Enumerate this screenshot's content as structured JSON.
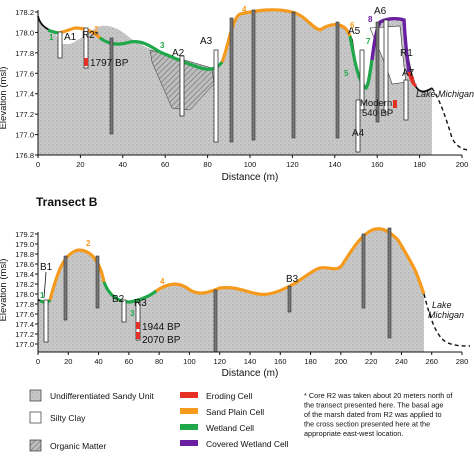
{
  "panel_a": {
    "ylabel": "Elevation (msl)",
    "xlabel": "Distance (m)",
    "y_ticks": [
      "178.2",
      "178.0",
      "177.8",
      "177.6",
      "177.4",
      "177.2",
      "177.0",
      "176.8"
    ],
    "x_ticks": [
      "0",
      "20",
      "40",
      "60",
      "80",
      "100",
      "120",
      "140",
      "160",
      "180",
      "200"
    ],
    "labels": {
      "a1": "A1",
      "r2": "R2*",
      "a2": "A2",
      "a3": "A3",
      "a5": "A5",
      "a6": "A6",
      "r1": "R1",
      "a7": "A7",
      "a4": "A4",
      "lake": "Lake Michigan",
      "date_1797": "1797 BP",
      "date_modern": "Modern",
      "date_540": "540 BP"
    },
    "cell_numbers": [
      "1",
      "2",
      "3",
      "4",
      "5",
      "6",
      "7",
      "8",
      "9"
    ]
  },
  "panel_b": {
    "title": "Transect B",
    "ylabel": "Elevation (msl)",
    "xlabel": "Distance (m)",
    "y_ticks": [
      "179.2",
      "179.0",
      "178.8",
      "178.6",
      "178.4",
      "178.2",
      "178.0",
      "177.8",
      "177.6",
      "177.4",
      "177.2",
      "177.0"
    ],
    "x_ticks": [
      "0",
      "20",
      "40",
      "60",
      "80",
      "100",
      "120",
      "140",
      "160",
      "180",
      "200",
      "220",
      "240",
      "260",
      "280"
    ],
    "labels": {
      "b1": "B1",
      "b2": "B2",
      "r3": "R3",
      "b3": "B3",
      "lake_1": "Lake",
      "lake_2": "Michigan",
      "date_1944": "1944 BP",
      "date_2070": "2070 BP"
    },
    "cell_numbers": [
      "1",
      "2",
      "3",
      "4"
    ]
  },
  "legend": {
    "items": [
      {
        "label": "Undifferentiated Sandy Unit",
        "color": "#c8c8c8"
      },
      {
        "label": "Silty Clay",
        "color": "#ffffff"
      },
      {
        "label": "Organic Matter",
        "color": "#bdbdbd"
      },
      {
        "label": "Eroding Cell",
        "color": "#e53026"
      },
      {
        "label": "Sand Plain Cell",
        "color": "#f59a1c"
      },
      {
        "label": "Wetland Cell",
        "color": "#1fa84a"
      },
      {
        "label": "Covered Wetland Cell",
        "color": "#6a1fa0"
      }
    ],
    "note": "* Core R2 was taken about 20 meters north of the transect presented here. The basal age of the marsh dated from R2 was applied to the cross section presented here at the appropriate east-west location."
  },
  "colors": {
    "eroding": "#e53026",
    "sand_plain": "#f59a1c",
    "wetland": "#1fa84a",
    "covered_wetland": "#6a1fa0",
    "sand_fill": "#c8c8c8",
    "profile": "#111111"
  }
}
